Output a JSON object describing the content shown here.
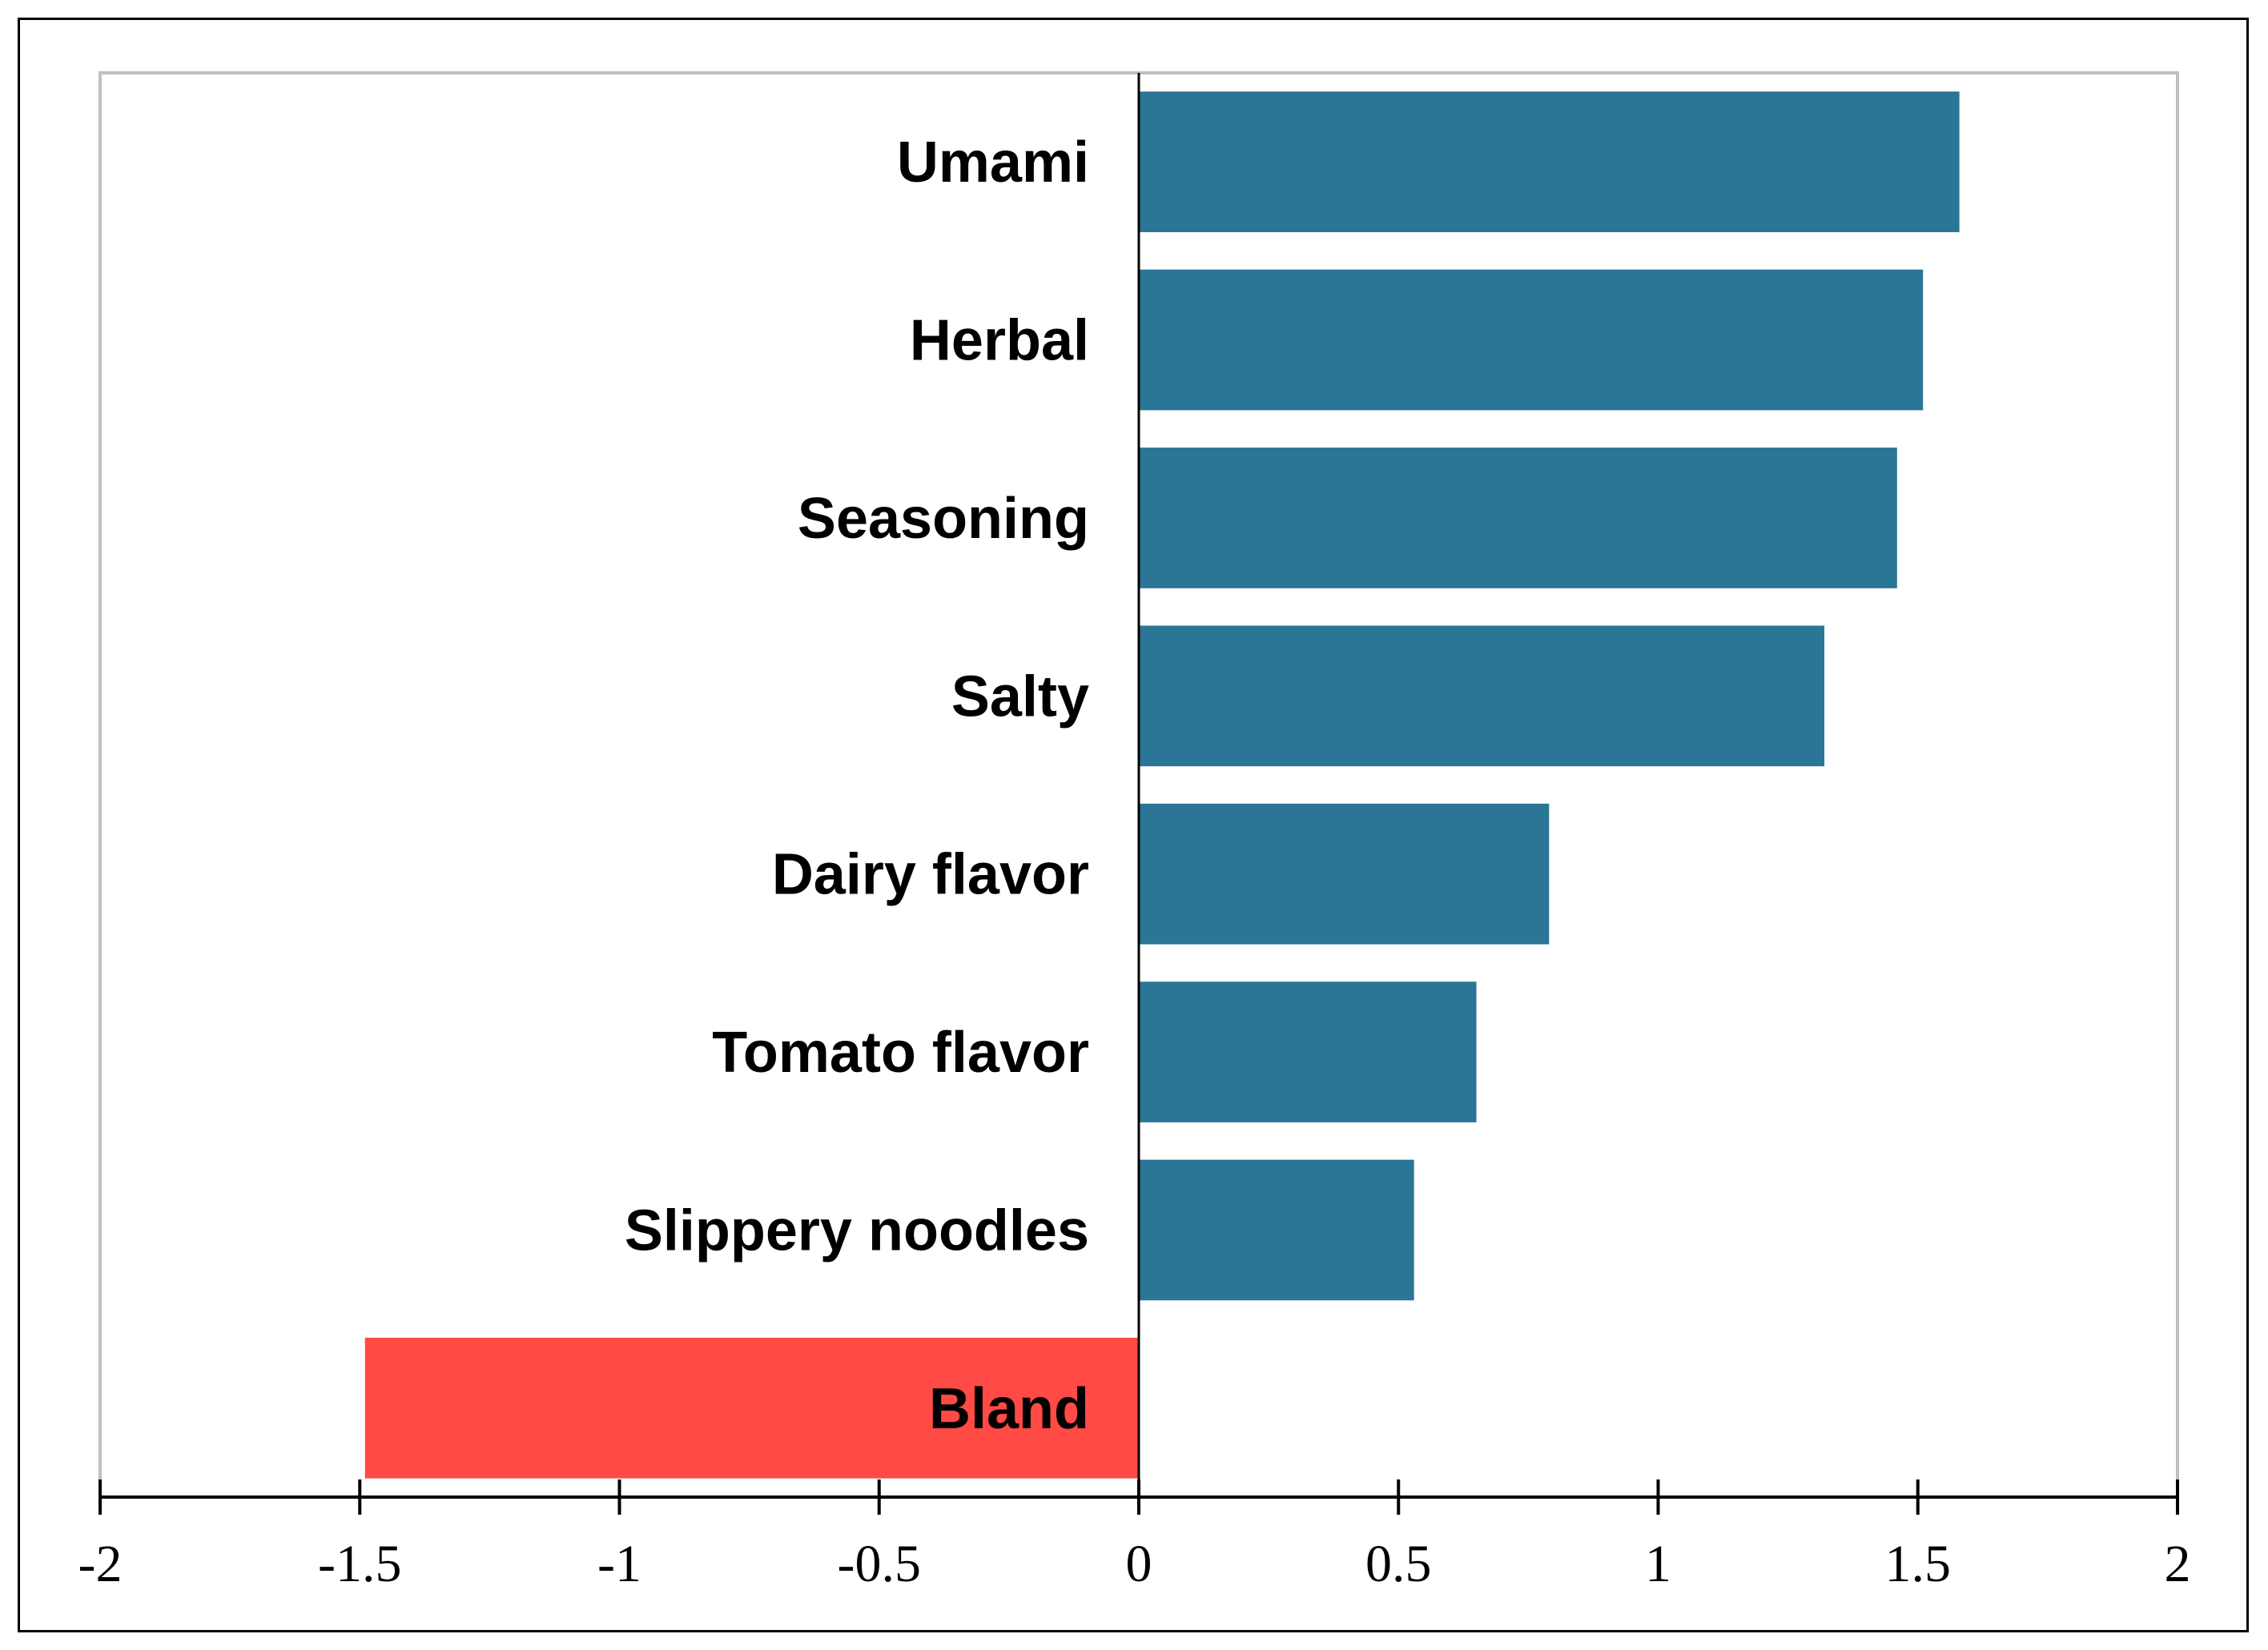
{
  "chart_data": {
    "type": "bar",
    "orientation": "horizontal",
    "categories": [
      "Umami",
      "Herbal",
      "Seasoning",
      "Salty",
      "Dairy flavor",
      "Tomato flavor",
      "Slippery noodles",
      "Bland"
    ],
    "values": [
      1.58,
      1.51,
      1.46,
      1.32,
      0.79,
      0.65,
      0.53,
      -1.49
    ],
    "title": "",
    "xlabel": "",
    "ylabel": "",
    "xlim": [
      -2,
      2
    ],
    "xticks": [
      -2,
      -1.5,
      -1,
      -0.5,
      0,
      0.5,
      1,
      1.5,
      2
    ],
    "tick_labels": [
      "-2",
      "-1.5",
      "-1",
      "-0.5",
      "0",
      "0.5",
      "1",
      "1.5",
      "2"
    ],
    "grid": false,
    "legend": "none",
    "colors": {
      "positive": "#2b7597",
      "negative": "#ff4a46",
      "plot_border": "#c0c0c0",
      "axis": "#000000"
    }
  }
}
